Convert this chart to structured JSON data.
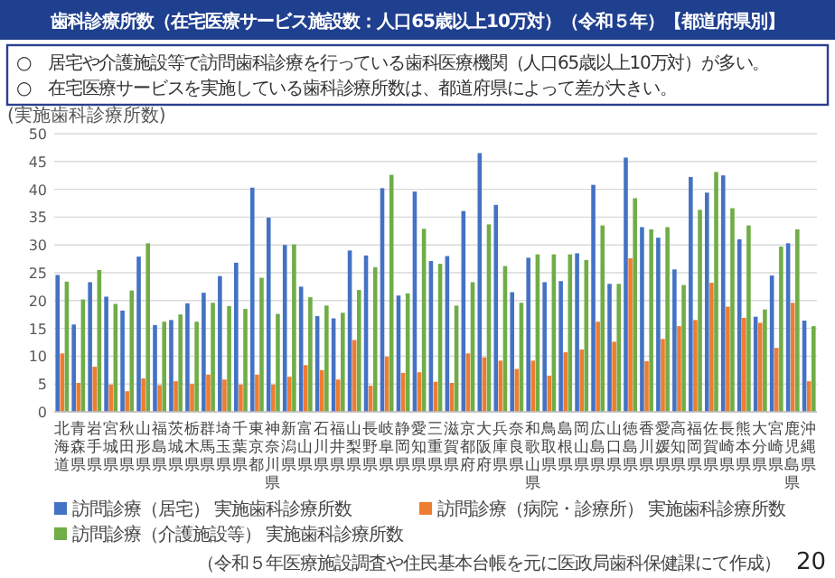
{
  "chart_data": {
    "type": "bar",
    "title": "歯科診療所数（在宅医療サービス施設数：人口65歳以上10万対）（令和５年）【都道府県別】",
    "annotations": [
      "○　居宅や介護施設等で訪問歯科診療を行っている歯科医療機関（人口65歳以上10万対）が多い。",
      "○　在宅医療サービスを実施している歯科診療所数は、都道府県によって差が大きい。",
      "（令和５年医療施設調査や住民基本台帳を元に医政局歯科保健課にて作成）",
      "20"
    ],
    "ylabel": "(実施歯科診療所数)",
    "categories": [
      "北海道",
      "青森県",
      "岩手県",
      "宮城県",
      "秋田県",
      "山形県",
      "福島県",
      "茨城県",
      "栃木県",
      "群馬県",
      "埼玉県",
      "千葉県",
      "東京都",
      "神奈川県",
      "新潟県",
      "富山県",
      "石川県",
      "福井県",
      "山梨県",
      "長野県",
      "岐阜県",
      "静岡県",
      "愛知県",
      "三重県",
      "滋賀県",
      "京都府",
      "大阪府",
      "兵庫県",
      "奈良県",
      "和歌山県",
      "鳥取県",
      "島根県",
      "岡山県",
      "広島県",
      "山口県",
      "徳島県",
      "香川県",
      "愛媛県",
      "高知県",
      "福岡県",
      "佐賀県",
      "長崎県",
      "熊本県",
      "大分県",
      "宮崎県",
      "鹿児島県",
      "沖縄県"
    ],
    "series": [
      {
        "name": "訪問診療（居宅） 実施歯科診療所数",
        "color": "#4472c4",
        "values": [
          24.6,
          15.7,
          23.3,
          20.7,
          18.2,
          27.9,
          15.6,
          16.5,
          19.5,
          21.4,
          24.4,
          26.8,
          40.3,
          34.9,
          30.0,
          22.5,
          17.2,
          16.8,
          29.0,
          28.1,
          40.2,
          20.9,
          39.6,
          27.1,
          28.0,
          36.1,
          46.5,
          37.2,
          21.5,
          27.7,
          23.3,
          23.5,
          28.5,
          40.8,
          23.0,
          45.7,
          33.2,
          31.3,
          25.6,
          42.2,
          39.4,
          42.5,
          31.0,
          17.1,
          24.5,
          30.3,
          16.4
        ]
      },
      {
        "name": "訪問診療（病院・診療所） 実施歯科診療所数",
        "color": "#ed7d31",
        "values": [
          10.5,
          5.2,
          8.1,
          4.9,
          3.7,
          6.0,
          4.8,
          5.5,
          5.0,
          6.7,
          5.8,
          4.9,
          6.7,
          4.9,
          6.3,
          8.4,
          7.5,
          5.8,
          12.9,
          4.7,
          9.9,
          7.0,
          7.1,
          5.4,
          5.2,
          10.5,
          9.8,
          9.2,
          7.7,
          9.2,
          6.5,
          10.7,
          11.2,
          16.2,
          12.6,
          27.6,
          9.1,
          13.1,
          15.4,
          16.5,
          23.2,
          18.9,
          16.9,
          16.0,
          11.5,
          19.6,
          5.5
        ]
      },
      {
        "name": "訪問診療（介護施設等） 実施歯科診療所数",
        "color": "#70ad47",
        "values": [
          23.4,
          20.2,
          25.5,
          19.4,
          21.8,
          30.3,
          16.2,
          17.5,
          16.2,
          19.6,
          19.0,
          18.5,
          24.1,
          17.6,
          30.1,
          20.6,
          19.1,
          17.8,
          21.9,
          26.0,
          42.6,
          21.3,
          32.9,
          26.6,
          19.1,
          23.3,
          33.7,
          26.2,
          19.6,
          28.3,
          28.3,
          28.3,
          27.3,
          33.5,
          23.0,
          38.4,
          32.8,
          33.2,
          22.8,
          36.3,
          43.1,
          36.6,
          33.5,
          18.4,
          29.7,
          32.8,
          15.4
        ]
      }
    ],
    "ylim": [
      0,
      50
    ],
    "yticks": [
      0,
      5,
      10,
      15,
      20,
      25,
      30,
      35,
      40,
      45,
      50
    ],
    "grid": "y",
    "legend": "bottom"
  }
}
